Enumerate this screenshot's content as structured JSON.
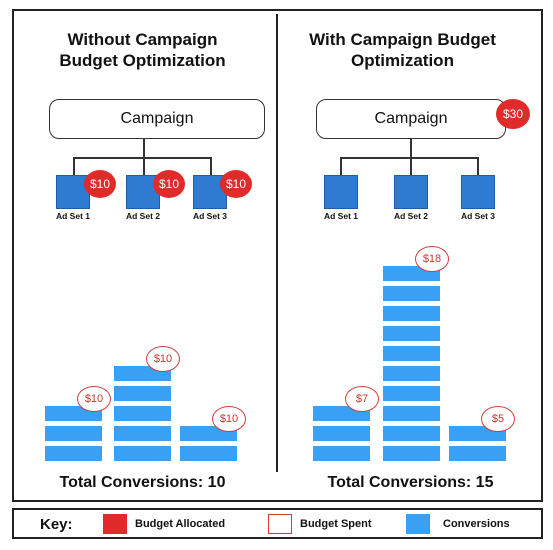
{
  "left_panel": {
    "title_line1": "Without Campaign",
    "title_line2": "Budget Optimization",
    "campaign_label": "Campaign",
    "ad_sets": [
      {
        "label": "Ad Set 1",
        "budget": "$10"
      },
      {
        "label": "Ad Set 2",
        "budget": "$10"
      },
      {
        "label": "Ad Set 3",
        "budget": "$10"
      }
    ],
    "bars": [
      {
        "conversions": 3,
        "spent": "$10"
      },
      {
        "conversions": 5,
        "spent": "$10"
      },
      {
        "conversions": 2,
        "spent": "$10"
      }
    ],
    "total": "Total Conversions: 10"
  },
  "right_panel": {
    "title_line1": "With Campaign Budget",
    "title_line2": "Optimization",
    "campaign_label": "Campaign",
    "campaign_budget": "$30",
    "ad_sets": [
      {
        "label": "Ad Set 1"
      },
      {
        "label": "Ad Set 2"
      },
      {
        "label": "Ad Set 3"
      }
    ],
    "bars": [
      {
        "conversions": 3,
        "spent": "$7"
      },
      {
        "conversions": 10,
        "spent": "$18"
      },
      {
        "conversions": 2,
        "spent": "$5"
      }
    ],
    "total": "Total Conversions: 15"
  },
  "key": {
    "title": "Key:",
    "items": [
      {
        "label": "Budget Allocated",
        "color": "#e12b2b"
      },
      {
        "label": "Budget Spent",
        "color": "#ffffff"
      },
      {
        "label": "Conversions",
        "color": "#3aa0f3"
      }
    ]
  },
  "colors": {
    "ad_set": "#2f7bd1",
    "badge_red": "#e12b2b",
    "conversion_blue": "#3aa0f3"
  }
}
